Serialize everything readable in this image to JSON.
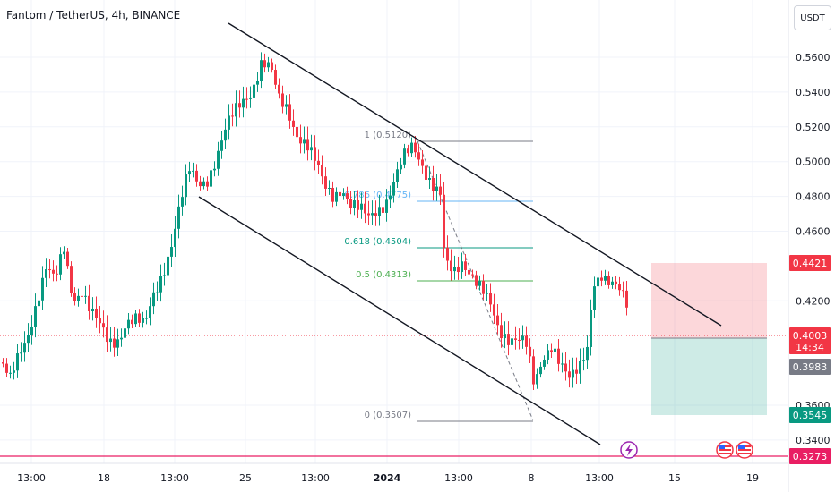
{
  "header": {
    "title": "Fantom / TetherUS, 4h, BINANCE",
    "currency_button": "USDT"
  },
  "price_axis": {
    "ticks": [
      {
        "value": 0.56,
        "label": "0.5600"
      },
      {
        "value": 0.54,
        "label": "0.5400"
      },
      {
        "value": 0.52,
        "label": "0.5200"
      },
      {
        "value": 0.5,
        "label": "0.5000"
      },
      {
        "value": 0.48,
        "label": "0.4800"
      },
      {
        "value": 0.46,
        "label": "0.4600"
      },
      {
        "value": 0.42,
        "label": "0.4200"
      },
      {
        "value": 0.36,
        "label": "0.3600"
      },
      {
        "value": 0.34,
        "label": "0.3400"
      }
    ]
  },
  "time_axis": {
    "ticks": [
      {
        "label": "13:00"
      },
      {
        "label": "18"
      },
      {
        "label": "13:00"
      },
      {
        "label": "25"
      },
      {
        "label": "13:00"
      },
      {
        "label": "2024"
      },
      {
        "label": "13:00"
      },
      {
        "label": "8"
      },
      {
        "label": "13:00"
      },
      {
        "label": "15"
      },
      {
        "label": "19"
      }
    ]
  },
  "price_tags": [
    {
      "name": "stop-loss-tag",
      "label": "0.4421",
      "color": "#f23645"
    },
    {
      "name": "current-price-tag",
      "label": "0.4003",
      "sublabel": "14:34",
      "color": "#f23645"
    },
    {
      "name": "entry-price-tag",
      "label": "0.3983",
      "color": "#787b86"
    },
    {
      "name": "take-profit-tag",
      "label": "0.3545",
      "color": "#089981"
    },
    {
      "name": "low-line-tag",
      "label": "0.3273",
      "color": "#e91e63"
    }
  ],
  "fibonacci": [
    {
      "label": "1 (0.5120)",
      "price": 0.512,
      "color": "#787b86"
    },
    {
      "label": "0.786 (0.4775)",
      "price": 0.4775,
      "color": "#64b5f6"
    },
    {
      "label": "0.618 (0.4504)",
      "price": 0.4504,
      "color": "#089981"
    },
    {
      "label": "0.5 (0.4313)",
      "price": 0.4313,
      "color": "#4caf50"
    },
    {
      "label": "0 (0.3507)",
      "price": 0.3507,
      "color": "#787b86"
    }
  ],
  "colors": {
    "up": "#089981",
    "down": "#f23645",
    "grid": "#f0f3fa",
    "channel": "#131722"
  },
  "icons": [
    "lightning-icon",
    "us-flag-icon",
    "us-flag-icon"
  ]
}
